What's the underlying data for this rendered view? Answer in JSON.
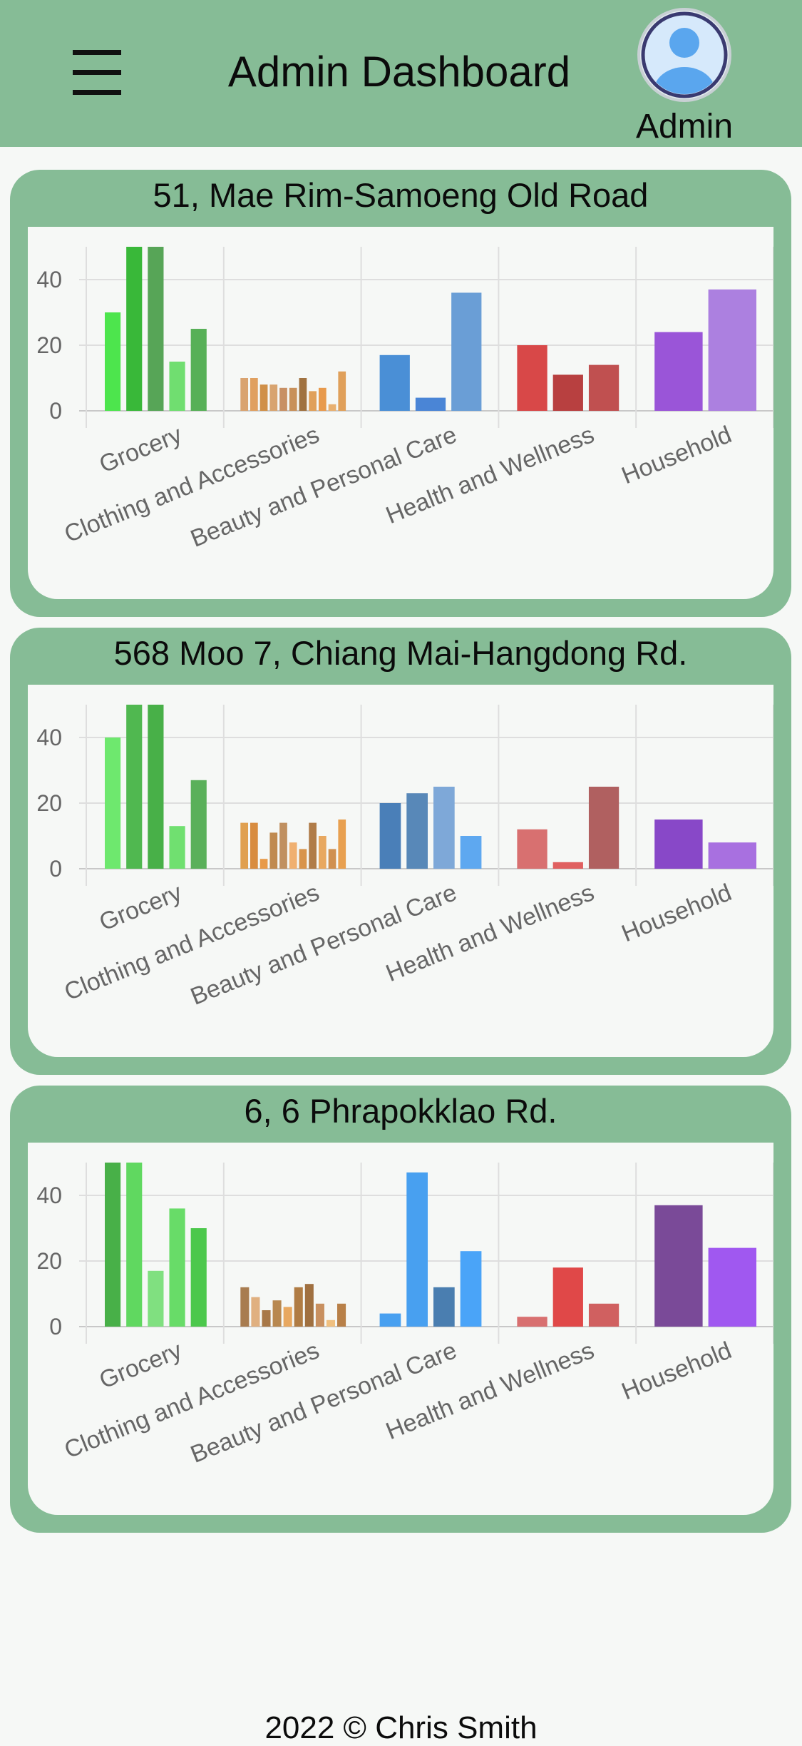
{
  "header": {
    "title": "Admin Dashboard",
    "menu_icon": "hamburger-menu-icon",
    "avatar_icon": "user-avatar-icon",
    "user_label": "Admin"
  },
  "colors": {
    "header_bg": "#86bc96",
    "page_bg": "#f6f8f6",
    "category_colors": {
      "Grocery": "green",
      "Clothing and Accessories": "orange-brown",
      "Beauty and Personal Care": "blue",
      "Health and Wellness": "red",
      "Household": "purple"
    }
  },
  "stores": [
    {
      "name": "51, Mae Rim-Samoeng Old Road",
      "chart_data": {
        "type": "bar",
        "categories": [
          "Grocery",
          "Clothing and Accessories",
          "Beauty and Personal Care",
          "Health and Wellness",
          "Household"
        ],
        "yticks": [
          0,
          20,
          40
        ],
        "ylim": [
          0,
          50
        ],
        "grid": true,
        "bars": {
          "Grocery": [
            30,
            50,
            50,
            15,
            25
          ],
          "Clothing and Accessories": [
            10,
            10,
            8,
            8,
            7,
            7,
            10,
            6,
            7,
            2,
            12
          ],
          "Beauty and Personal Care": [
            17,
            4,
            36
          ],
          "Health and Wellness": [
            20,
            11,
            14
          ],
          "Household": [
            24,
            37
          ]
        },
        "bar_colors": {
          "Grocery": [
            "#4de54d",
            "#39b839",
            "#57a557",
            "#70de70",
            "#57b057"
          ],
          "Clothing and Accessories": [
            "#d9a370",
            "#e0a060",
            "#d09048",
            "#d8a470",
            "#c89064",
            "#c8905a",
            "#a07240",
            "#e0a05a",
            "#e89a4c",
            "#e8b070",
            "#e0a05a"
          ],
          "Beauty and Personal Care": [
            "#4a8fd6",
            "#4a85d6",
            "#6a9ed6"
          ],
          "Health and Wellness": [
            "#d84848",
            "#b84040",
            "#c05050"
          ],
          "Household": [
            "#9a55d8",
            "#ac80e0"
          ]
        }
      }
    },
    {
      "name": "568 Moo 7, Chiang Mai-Hangdong Rd.",
      "chart_data": {
        "type": "bar",
        "categories": [
          "Grocery",
          "Clothing and Accessories",
          "Beauty and Personal Care",
          "Health and Wellness",
          "Household"
        ],
        "yticks": [
          0,
          20,
          40
        ],
        "ylim": [
          0,
          50
        ],
        "grid": true,
        "bars": {
          "Grocery": [
            40,
            50,
            50,
            13,
            27
          ],
          "Clothing and Accessories": [
            14,
            14,
            3,
            11,
            14,
            8,
            6,
            14,
            10,
            6,
            15
          ],
          "Beauty and Personal Care": [
            20,
            23,
            25,
            10
          ],
          "Health and Wellness": [
            12,
            2,
            25
          ],
          "Household": [
            15,
            8
          ]
        },
        "bar_colors": {
          "Grocery": [
            "#6ee86e",
            "#50b850",
            "#48b048",
            "#70e070",
            "#5ab05a"
          ],
          "Clothing and Accessories": [
            "#e0a050",
            "#d88c40",
            "#e89a48",
            "#c08a50",
            "#c09060",
            "#f0b070",
            "#d8944c",
            "#b07c48",
            "#e8a860",
            "#d09050",
            "#e8a050"
          ],
          "Beauty and Personal Care": [
            "#4a7fb8",
            "#5888b8",
            "#7ea8d8",
            "#5ea8f0"
          ],
          "Health and Wellness": [
            "#d87070",
            "#e06060",
            "#b06060"
          ],
          "Household": [
            "#8848c8",
            "#a870e0"
          ]
        }
      }
    },
    {
      "name": "6, 6 Phrapokklao Rd.",
      "chart_data": {
        "type": "bar",
        "categories": [
          "Grocery",
          "Clothing and Accessories",
          "Beauty and Personal Care",
          "Health and Wellness",
          "Household"
        ],
        "yticks": [
          0,
          20,
          40
        ],
        "ylim": [
          0,
          50
        ],
        "grid": true,
        "bars": {
          "Grocery": [
            50,
            50,
            17,
            36,
            30
          ],
          "Clothing and Accessories": [
            12,
            9,
            5,
            8,
            6,
            12,
            13,
            7,
            2,
            7
          ],
          "Beauty and Personal Care": [
            4,
            47,
            12,
            23
          ],
          "Health and Wellness": [
            3,
            18,
            7
          ],
          "Household": [
            37,
            24
          ]
        },
        "bar_colors": {
          "Grocery": [
            "#48b048",
            "#60d860",
            "#80e080",
            "#68dc68",
            "#4cc84c"
          ],
          "Clothing and Accessories": [
            "#a87c50",
            "#e0b080",
            "#a87848",
            "#b88850",
            "#e8a860",
            "#b07c44",
            "#a07040",
            "#c89060",
            "#f0c080",
            "#b88048"
          ],
          "Beauty and Personal Care": [
            "#48a0f0",
            "#48a0f0",
            "#4a7eb0",
            "#4aa4f8"
          ],
          "Health and Wellness": [
            "#d87070",
            "#e04848",
            "#d06060"
          ],
          "Household": [
            "#7a4a98",
            "#a058f0"
          ]
        }
      }
    }
  ],
  "footer": {
    "text": "2022 © Chris Smith"
  }
}
